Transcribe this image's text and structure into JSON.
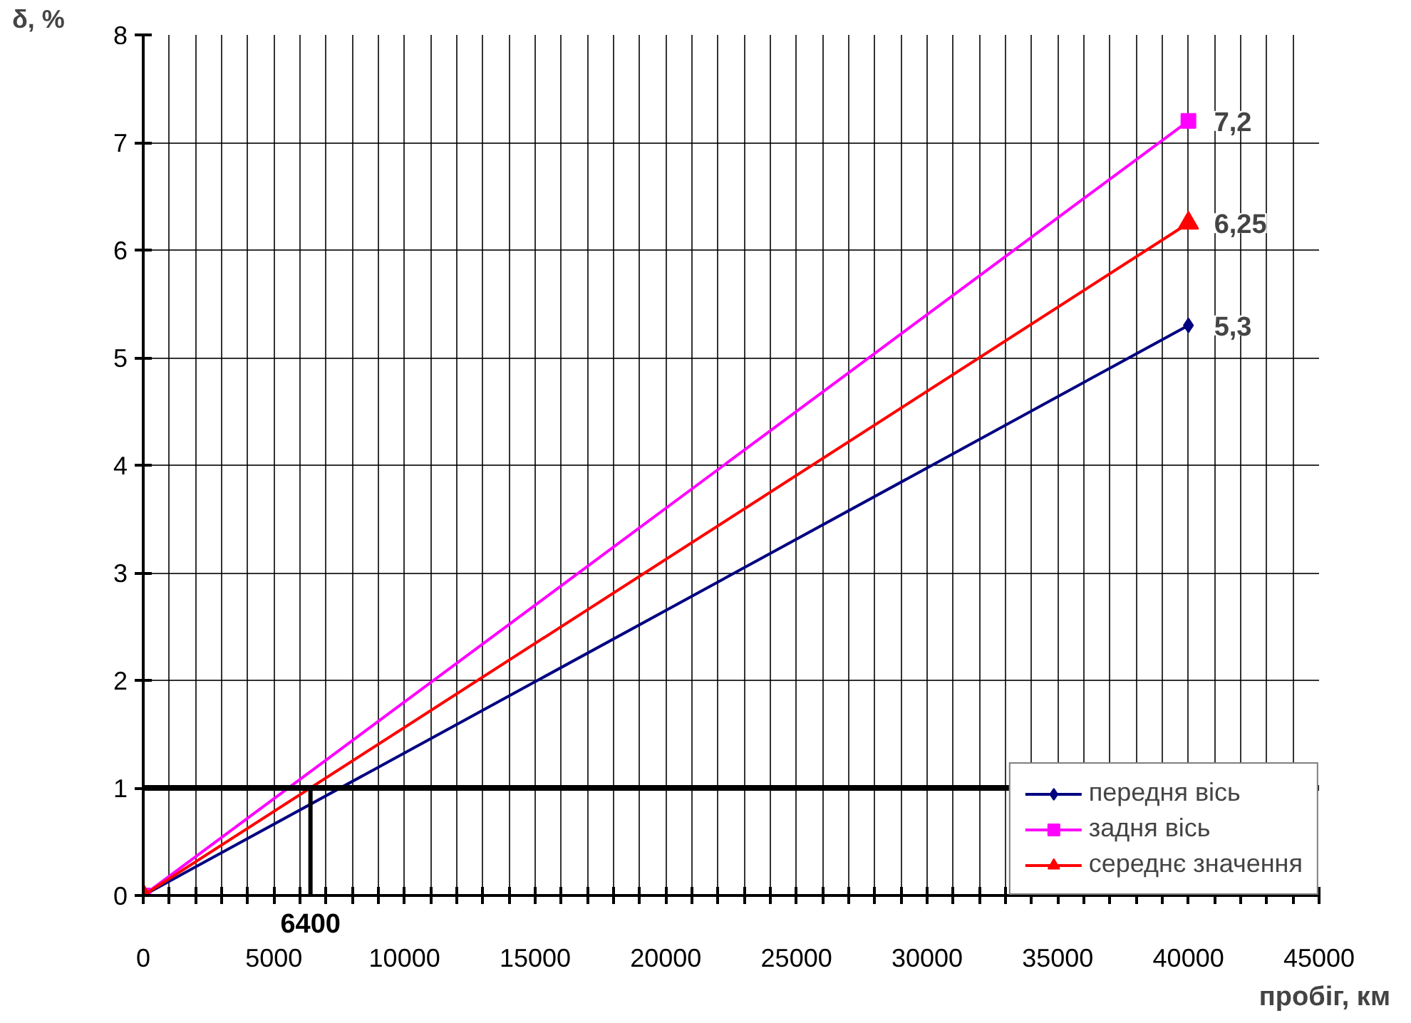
{
  "chart_data": {
    "type": "line",
    "xlabel": "пробіг, км",
    "ylabel": "δ, %",
    "xlim": [
      0,
      45000
    ],
    "ylim": [
      0,
      8
    ],
    "xticks": [
      0,
      {
        "value": 1000,
        "label": null
      },
      {
        "value": 2000,
        "label": null
      },
      {
        "value": 3000,
        "label": null
      },
      {
        "value": 4000,
        "label": null
      },
      5000,
      {
        "value": 6000,
        "label": null
      },
      {
        "value": 7000,
        "label": null
      },
      {
        "value": 8000,
        "label": null
      },
      {
        "value": 9000,
        "label": null
      },
      10000,
      {
        "value": 11000,
        "label": null
      },
      {
        "value": 12000,
        "label": null
      },
      {
        "value": 13000,
        "label": null
      },
      {
        "value": 14000,
        "label": null
      },
      15000,
      {
        "value": 16000,
        "label": null
      },
      {
        "value": 17000,
        "label": null
      },
      {
        "value": 18000,
        "label": null
      },
      {
        "value": 19000,
        "label": null
      },
      20000,
      {
        "value": 21000,
        "label": null
      },
      {
        "value": 22000,
        "label": null
      },
      {
        "value": 23000,
        "label": null
      },
      {
        "value": 24000,
        "label": null
      },
      25000,
      {
        "value": 26000,
        "label": null
      },
      {
        "value": 27000,
        "label": null
      },
      {
        "value": 28000,
        "label": null
      },
      {
        "value": 29000,
        "label": null
      },
      30000,
      {
        "value": 31000,
        "label": null
      },
      {
        "value": 32000,
        "label": null
      },
      {
        "value": 33000,
        "label": null
      },
      {
        "value": 34000,
        "label": null
      },
      35000,
      {
        "value": 36000,
        "label": null
      },
      {
        "value": 37000,
        "label": null
      },
      {
        "value": 38000,
        "label": null
      },
      {
        "value": 39000,
        "label": null
      },
      40000,
      {
        "value": 41000,
        "label": null
      },
      {
        "value": 42000,
        "label": null
      },
      {
        "value": 43000,
        "label": null
      },
      {
        "value": 44000,
        "label": null
      },
      45000
    ],
    "yticks": [
      0,
      1,
      2,
      3,
      4,
      5,
      6,
      7,
      8
    ],
    "grid": true,
    "legend": "bottom right",
    "line_style": "solid",
    "x": [
      0,
      40000
    ],
    "series": [
      {
        "name": "передня вісь",
        "color": "#000080",
        "values": [
          0,
          5.3
        ],
        "marker": "diamond",
        "value_labels": [
          null,
          "5,3"
        ]
      },
      {
        "name": "задня вісь",
        "color": "#ff00ff",
        "values": [
          0,
          7.2
        ],
        "marker": "square",
        "value_labels": [
          null,
          "7,2"
        ]
      },
      {
        "name": "середнє значення",
        "color": "#ff0000",
        "values": [
          0,
          6.25
        ],
        "marker": "triangle",
        "value_labels": [
          null,
          "6,25"
        ]
      }
    ],
    "ref_lines": [
      {
        "axis": "y",
        "value": 1,
        "color": "#000000"
      },
      {
        "axis": "x",
        "value": 6400,
        "label": "6400",
        "color": "#000000"
      }
    ]
  }
}
